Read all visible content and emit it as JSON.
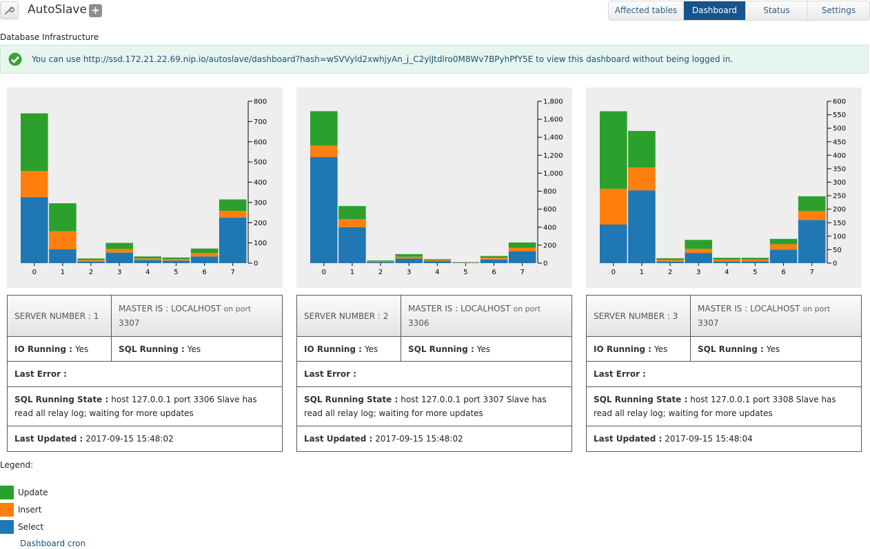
{
  "header": {
    "app_title": "AutoSlave",
    "add_label": "+",
    "tabs": [
      {
        "label": "Affected tables",
        "active": false
      },
      {
        "label": "Dashboard",
        "active": true
      },
      {
        "label": "Status",
        "active": false
      },
      {
        "label": "Settings",
        "active": false
      }
    ]
  },
  "section_title": "Database Infrastructure",
  "notice": {
    "text": "You can use http://ssd.172.21.22.69.nip.io/autoslave/dashboard?hash=wSVVyld2xwhjyAn_j_C2ylJtdlro0M8Wv7BPyhPfY5E to view this dashboard without being logged in."
  },
  "colors": {
    "update": "#2ca02c",
    "insert": "#ff7f0e",
    "select": "#1f77b4"
  },
  "servers": [
    {
      "server_label": "SERVER NUMBER : 1",
      "master_label": "MASTER IS : LOCALHOST",
      "port_text": "on port",
      "port": "3307",
      "io_label": "IO Running :",
      "io_value": "Yes",
      "sql_label": "SQL Running :",
      "sql_value": "Yes",
      "error_label": "Last Error :",
      "error_value": "",
      "state_label": "SQL Running State :",
      "state_value": "host 127.0.0.1 port 3306 Slave has read all relay log; waiting for more updates",
      "updated_label": "Last Updated :",
      "updated_value": "2017-09-15 15:48:02"
    },
    {
      "server_label": "SERVER NUMBER : 2",
      "master_label": "MASTER IS : LOCALHOST",
      "port_text": "on port",
      "port": "3306",
      "io_label": "IO Running :",
      "io_value": "Yes",
      "sql_label": "SQL Running :",
      "sql_value": "Yes",
      "error_label": "Last Error :",
      "error_value": "",
      "state_label": "SQL Running State :",
      "state_value": "host 127.0.0.1 port 3307 Slave has read all relay log; waiting for more updates",
      "updated_label": "Last Updated :",
      "updated_value": "2017-09-15 15:48:02"
    },
    {
      "server_label": "SERVER NUMBER : 3",
      "master_label": "MASTER IS : LOCALHOST",
      "port_text": "on port",
      "port": "3307",
      "io_label": "IO Running :",
      "io_value": "Yes",
      "sql_label": "SQL Running :",
      "sql_value": "Yes",
      "error_label": "Last Error :",
      "error_value": "",
      "state_label": "SQL Running State :",
      "state_value": "host 127.0.0.1 port 3308 Slave has read all relay log; waiting for more updates",
      "updated_label": "Last Updated :",
      "updated_value": "2017-09-15 15:48:04"
    }
  ],
  "chart_data": [
    {
      "type": "bar",
      "stacked": true,
      "categories": [
        "0",
        "1",
        "2",
        "3",
        "4",
        "5",
        "6",
        "7"
      ],
      "series": [
        {
          "name": "Select",
          "values": [
            325,
            68,
            8,
            52,
            15,
            12,
            33,
            225
          ]
        },
        {
          "name": "Insert",
          "values": [
            130,
            90,
            7,
            18,
            8,
            8,
            17,
            33
          ]
        },
        {
          "name": "Update",
          "values": [
            285,
            138,
            8,
            30,
            10,
            8,
            22,
            57
          ]
        }
      ],
      "ylim": [
        0,
        800
      ],
      "yticks": [
        "0",
        "100",
        "200",
        "300",
        "400",
        "500",
        "600",
        "700",
        "800"
      ],
      "grid": false
    },
    {
      "type": "bar",
      "stacked": true,
      "categories": [
        "0",
        "1",
        "2",
        "3",
        "4",
        "5",
        "6",
        "7"
      ],
      "series": [
        {
          "name": "Select",
          "values": [
            1180,
            400,
            12,
            50,
            22,
            5,
            40,
            130
          ]
        },
        {
          "name": "Insert",
          "values": [
            130,
            90,
            8,
            20,
            10,
            3,
            20,
            40
          ]
        },
        {
          "name": "Update",
          "values": [
            380,
            145,
            10,
            30,
            12,
            3,
            20,
            60
          ]
        }
      ],
      "ylim": [
        0,
        1800
      ],
      "yticks": [
        "0",
        "200",
        "400",
        "600",
        "800",
        "1,000",
        "1,200",
        "1,400",
        "1,600",
        "1,800"
      ],
      "grid": false
    },
    {
      "type": "bar",
      "stacked": true,
      "categories": [
        "0",
        "1",
        "2",
        "3",
        "4",
        "5",
        "6",
        "7"
      ],
      "series": [
        {
          "name": "Select",
          "values": [
            143,
            270,
            6,
            38,
            7,
            7,
            50,
            160
          ]
        },
        {
          "name": "Insert",
          "values": [
            132,
            85,
            6,
            15,
            6,
            6,
            20,
            33
          ]
        },
        {
          "name": "Update",
          "values": [
            288,
            135,
            6,
            33,
            7,
            7,
            20,
            55
          ]
        }
      ],
      "ylim": [
        0,
        600
      ],
      "yticks": [
        "0",
        "50",
        "100",
        "150",
        "200",
        "250",
        "300",
        "350",
        "400",
        "450",
        "500",
        "550",
        "600"
      ],
      "grid": false
    }
  ],
  "legend": {
    "title": "Legend:",
    "items": [
      {
        "label": "Update",
        "color": "#2ca02c"
      },
      {
        "label": "Insert",
        "color": "#ff7f0e"
      },
      {
        "label": "Select",
        "color": "#1f77b4"
      }
    ]
  },
  "footer_link": "Dashboard cron"
}
